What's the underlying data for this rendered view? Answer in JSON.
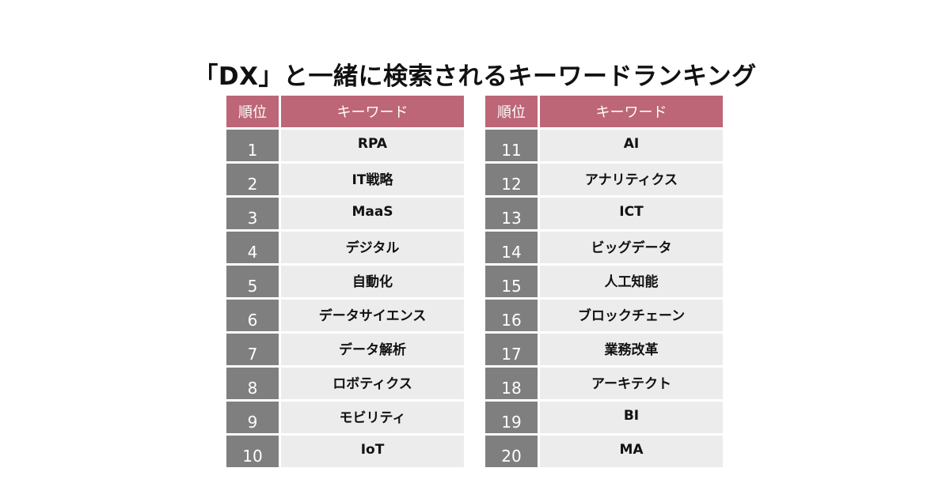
{
  "title": "「DX」と一緒に検索されるキーワードランキング",
  "colors": {
    "header_bg": "#bd6677",
    "rank_bg": "#7f7f7f",
    "keyword_bg": "#ececec",
    "text_dark": "#111111",
    "text_light": "#ffffff"
  },
  "tables": [
    {
      "headers": {
        "rank": "順位",
        "keyword": "キーワード"
      },
      "rows": [
        {
          "rank": "1",
          "keyword": "RPA"
        },
        {
          "rank": "2",
          "keyword": "IT戦略"
        },
        {
          "rank": "3",
          "keyword": "MaaS"
        },
        {
          "rank": "4",
          "keyword": "デジタル"
        },
        {
          "rank": "5",
          "keyword": "自動化"
        },
        {
          "rank": "6",
          "keyword": "データサイエンス"
        },
        {
          "rank": "7",
          "keyword": "データ解析"
        },
        {
          "rank": "8",
          "keyword": "ロボティクス"
        },
        {
          "rank": "9",
          "keyword": "モビリティ"
        },
        {
          "rank": "10",
          "keyword": "IoT"
        }
      ]
    },
    {
      "headers": {
        "rank": "順位",
        "keyword": "キーワード"
      },
      "rows": [
        {
          "rank": "11",
          "keyword": "AI"
        },
        {
          "rank": "12",
          "keyword": "アナリティクス"
        },
        {
          "rank": "13",
          "keyword": "ICT"
        },
        {
          "rank": "14",
          "keyword": "ビッグデータ"
        },
        {
          "rank": "15",
          "keyword": "人工知能"
        },
        {
          "rank": "16",
          "keyword": "ブロックチェーン"
        },
        {
          "rank": "17",
          "keyword": "業務改革"
        },
        {
          "rank": "18",
          "keyword": "アーキテクト"
        },
        {
          "rank": "19",
          "keyword": "BI"
        },
        {
          "rank": "20",
          "keyword": "MA"
        }
      ]
    }
  ]
}
